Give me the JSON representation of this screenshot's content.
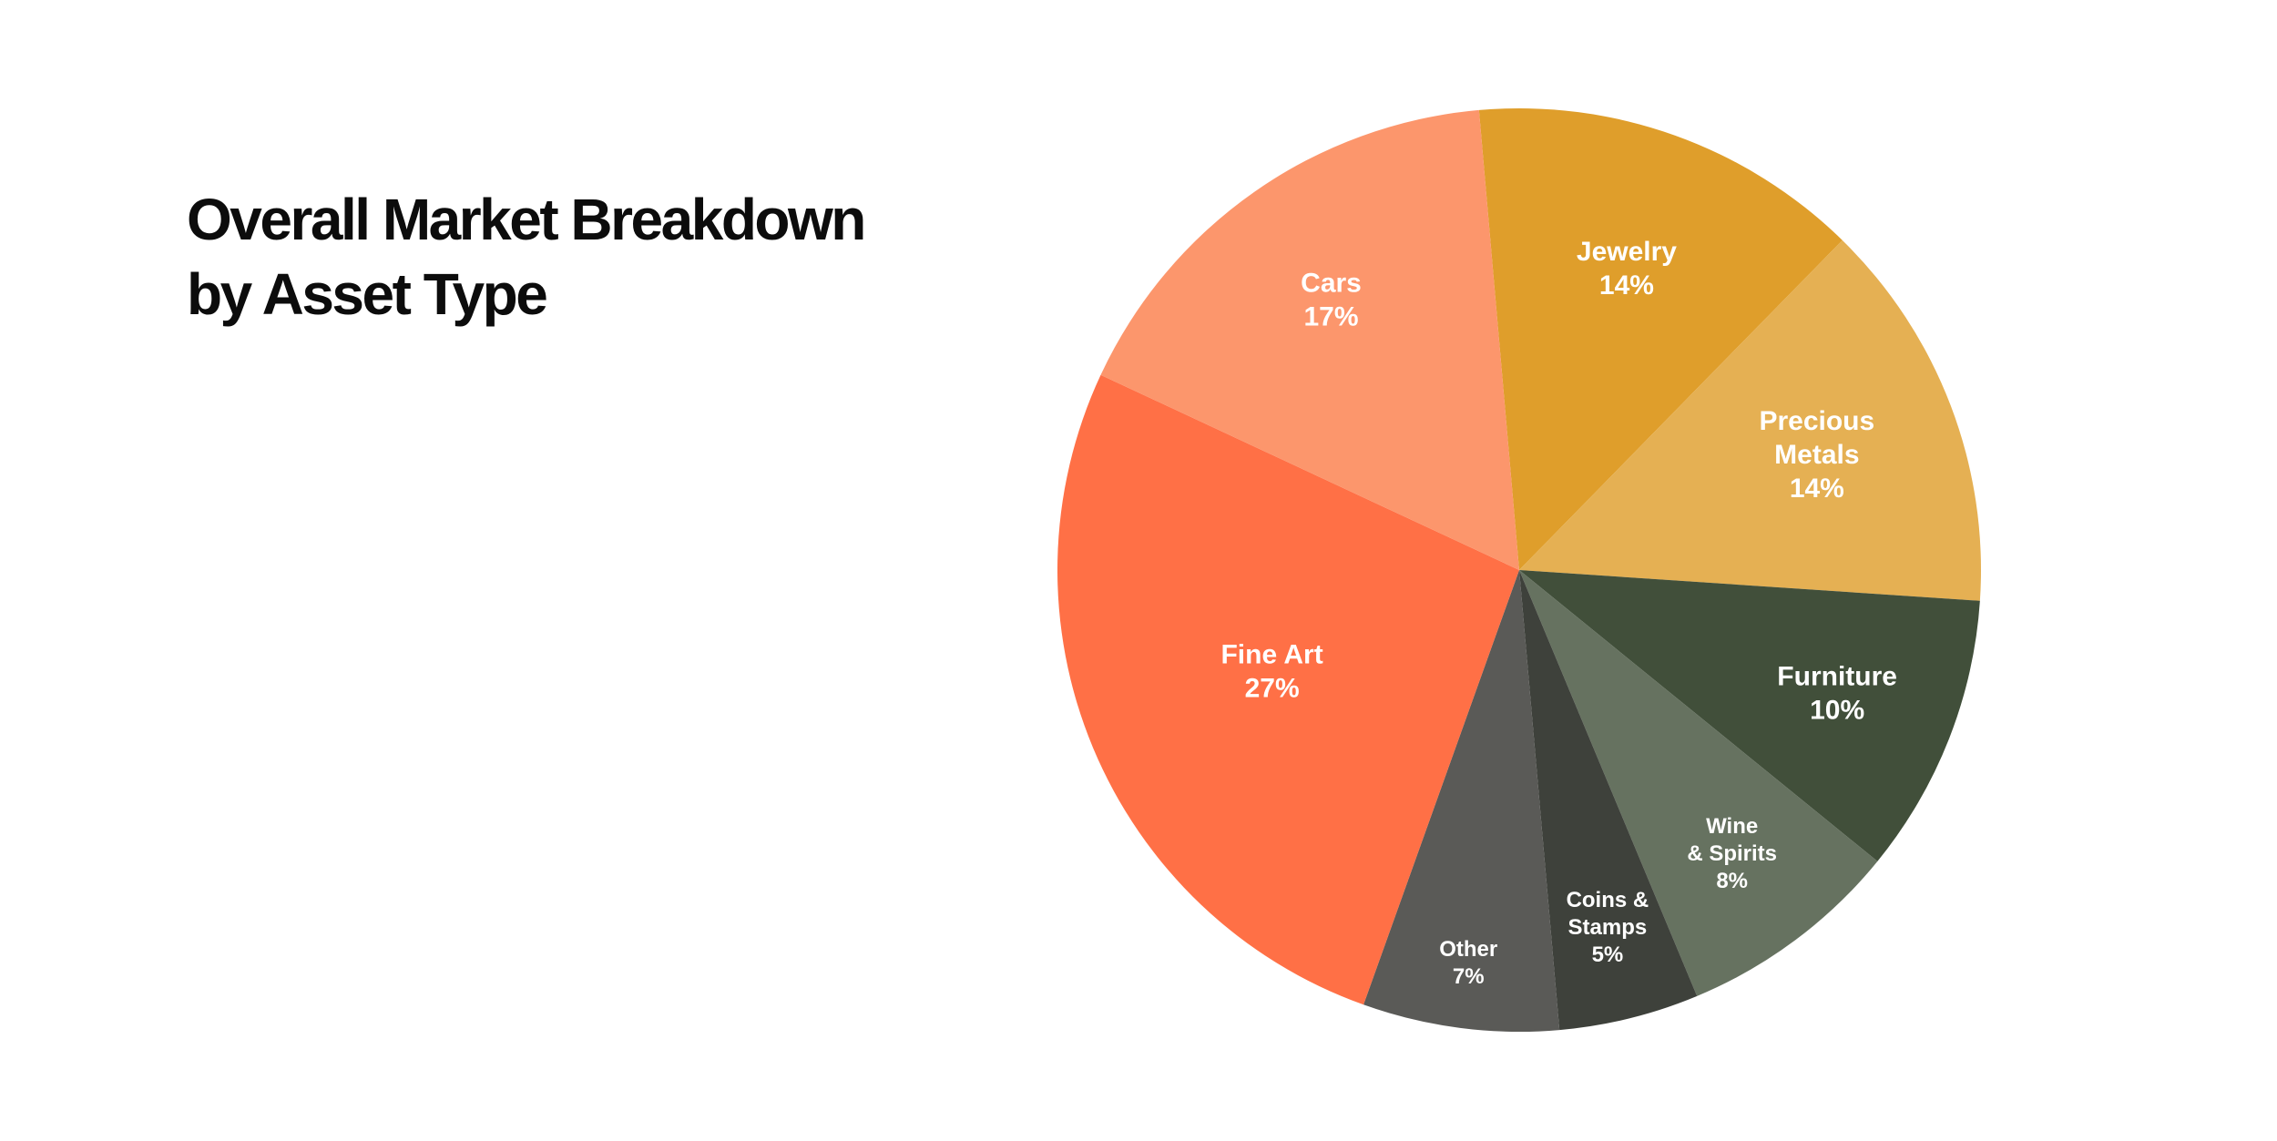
{
  "chart_data": {
    "type": "pie",
    "title_lines": [
      "Overall Market Breakdown",
      "by Asset Type"
    ],
    "slices": [
      {
        "name_lines": [
          "Jewelry"
        ],
        "value": 14,
        "value_label": "14%",
        "color": "#df9e2b"
      },
      {
        "name_lines": [
          "Precious",
          "Metals"
        ],
        "value": 14,
        "value_label": "14%",
        "color": "#e5b053"
      },
      {
        "name_lines": [
          "Furniture"
        ],
        "value": 10,
        "value_label": "10%",
        "color": "#414f3a"
      },
      {
        "name_lines": [
          "Wine",
          "& Spirits"
        ],
        "value": 8,
        "value_label": "8%",
        "color": "#667260"
      },
      {
        "name_lines": [
          "Coins &",
          "Stamps"
        ],
        "value": 5,
        "value_label": "5%",
        "color": "#3e413b"
      },
      {
        "name_lines": [
          "Other"
        ],
        "value": 7,
        "value_label": "7%",
        "color": "#5a5a57"
      },
      {
        "name_lines": [
          "Fine Art"
        ],
        "value": 27,
        "value_label": "27%",
        "color": "#ff7046"
      },
      {
        "name_lines": [
          "Cars"
        ],
        "value": 17,
        "value_label": "17%",
        "color": "#fc966c"
      }
    ]
  }
}
